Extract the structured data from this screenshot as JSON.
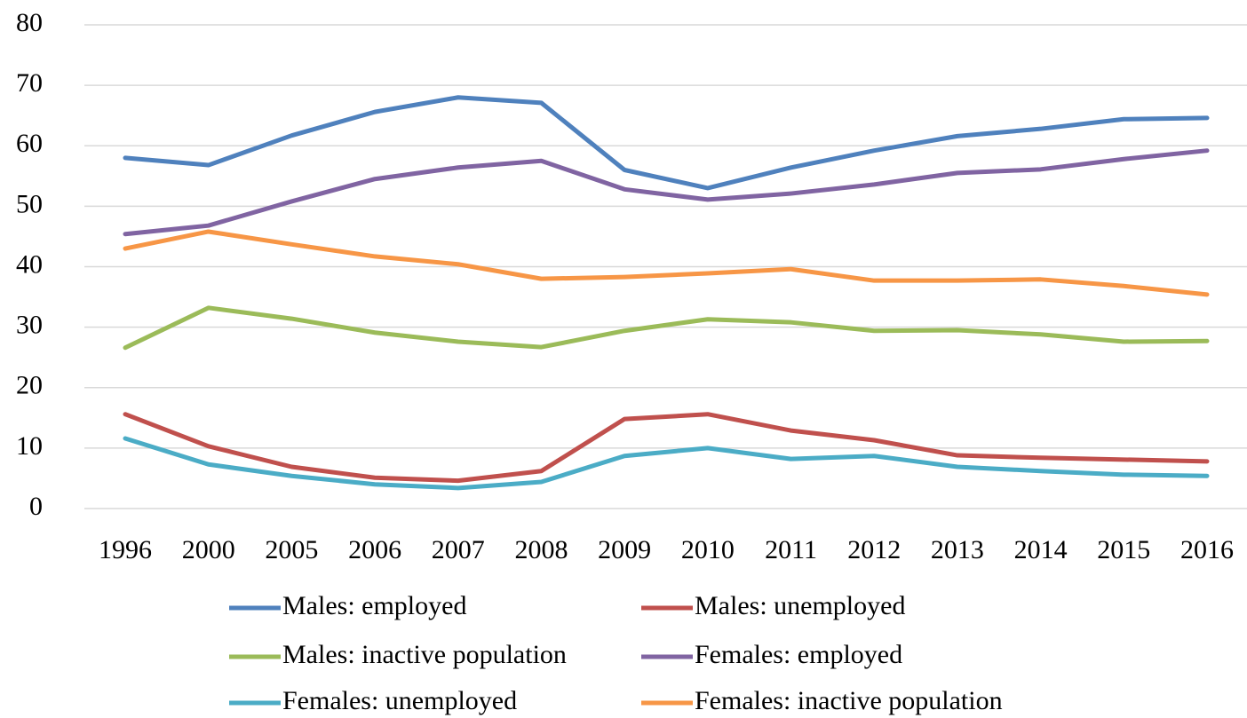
{
  "chart_data": {
    "type": "line",
    "categories": [
      "1996",
      "2000",
      "2005",
      "2006",
      "2007",
      "2008",
      "2009",
      "2010",
      "2011",
      "2012",
      "2013",
      "2014",
      "2015",
      "2016"
    ],
    "series": [
      {
        "name": "Males: employed",
        "color": "#4f81bd",
        "values": [
          58,
          56.8,
          61.7,
          65.6,
          68,
          67.1,
          56,
          53,
          56.4,
          59.2,
          61.6,
          62.8,
          64.4,
          64.6
        ]
      },
      {
        "name": "Males: unemployed",
        "color": "#c0504d",
        "values": [
          15.6,
          10.3,
          6.9,
          5.1,
          4.6,
          6.2,
          14.8,
          15.6,
          12.9,
          11.3,
          8.8,
          8.4,
          8.1,
          7.8
        ]
      },
      {
        "name": "Males: inactive population",
        "color": "#9bbb59",
        "values": [
          26.6,
          33.2,
          31.4,
          29.1,
          27.6,
          26.7,
          29.4,
          31.3,
          30.8,
          29.4,
          29.5,
          28.8,
          27.6,
          27.7
        ]
      },
      {
        "name": "Females: employed",
        "color": "#8064a2",
        "values": [
          45.4,
          46.8,
          50.8,
          54.5,
          56.4,
          57.5,
          52.8,
          51.1,
          52.1,
          53.6,
          55.5,
          56.1,
          57.8,
          59.2
        ]
      },
      {
        "name": "Females: unemployed",
        "color": "#4bacc6",
        "values": [
          11.6,
          7.3,
          5.4,
          4.0,
          3.4,
          4.4,
          8.7,
          10.0,
          8.2,
          8.7,
          6.9,
          6.2,
          5.6,
          5.4
        ]
      },
      {
        "name": "Females: inactive population",
        "color": "#f79646",
        "values": [
          43.0,
          45.8,
          43.7,
          41.7,
          40.4,
          38.0,
          38.3,
          38.9,
          39.6,
          37.7,
          37.7,
          37.9,
          36.8,
          35.4
        ]
      }
    ],
    "ylim": [
      0,
      80
    ],
    "yticks": [
      0,
      10,
      20,
      30,
      40,
      50,
      60,
      70,
      80
    ],
    "grid": true,
    "legend": "bottom"
  }
}
